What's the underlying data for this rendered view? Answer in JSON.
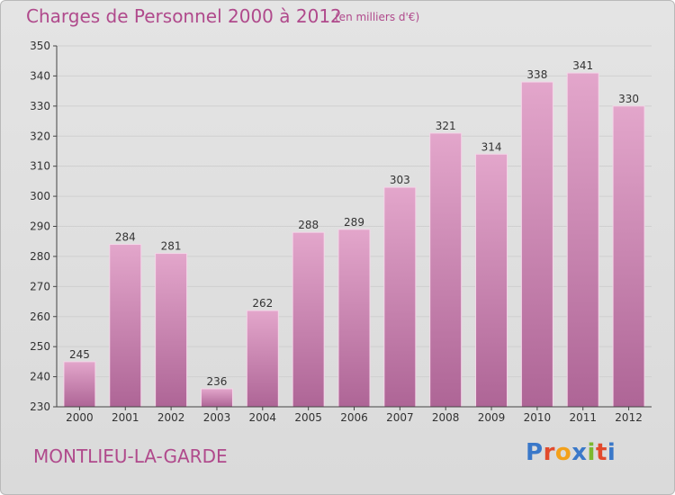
{
  "header": {
    "title": "Charges de Personnel 2000 à 2012",
    "subtitle": "(en milliers d'€)"
  },
  "footer": {
    "city": "MONTLIEU-LA-GARDE",
    "logo_letters": [
      "P",
      "r",
      "o",
      "x",
      "i",
      "t",
      "i"
    ]
  },
  "colors": {
    "text": "#b04a8c",
    "bar_top": "#e3a6cb",
    "bar_bottom": "#ae6596",
    "axis": "#444444",
    "grid": "#cfcfcf",
    "logo": [
      "#3a78c9",
      "#e24a2c",
      "#f3a11b",
      "#3a78c9",
      "#7cb82f",
      "#e24a2c",
      "#3a78c9"
    ]
  },
  "chart_data": {
    "type": "bar",
    "categories": [
      "2000",
      "2001",
      "2002",
      "2003",
      "2004",
      "2005",
      "2006",
      "2007",
      "2008",
      "2009",
      "2010",
      "2011",
      "2012"
    ],
    "values": [
      245,
      284,
      281,
      236,
      262,
      288,
      289,
      303,
      321,
      314,
      338,
      341,
      330
    ],
    "yticks": [
      230,
      240,
      250,
      260,
      270,
      280,
      290,
      300,
      310,
      320,
      330,
      340,
      350
    ],
    "ylim": [
      230,
      350
    ],
    "grid": true,
    "data_labels": true
  }
}
